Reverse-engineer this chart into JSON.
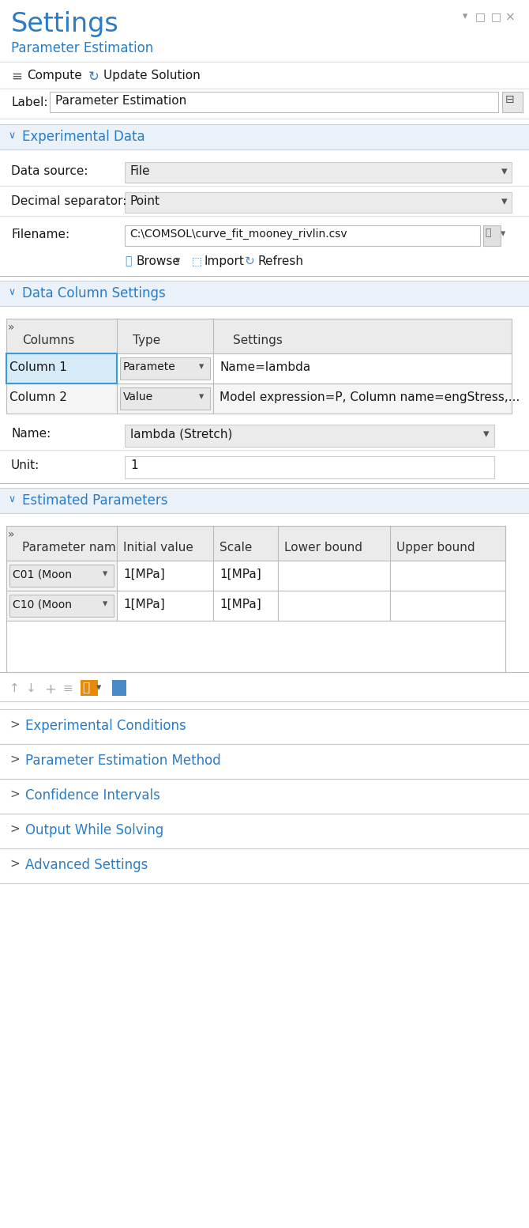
{
  "bg_color": "#f0f4f8",
  "white": "#ffffff",
  "title_color": "#2a7cc7",
  "section_color": "#2a7cc7",
  "section_bg": "#eaf1f8",
  "header_bg": "#ebebeb",
  "selected_row_bg": "#d6eaf8",
  "selected_row_border": "#3a9ad9",
  "dropdown_bg": "#ebebeb",
  "input_bg": "#f7f7f7",
  "border_color": "#c8c8c8",
  "light_border": "#d8d8d8",
  "text_dark": "#1a1a1a",
  "text_mid": "#444444",
  "text_light": "#888888",
  "collapsed_sections": [
    "Experimental Conditions",
    "Parameter Estimation Method",
    "Confidence Intervals",
    "Output While Solving",
    "Advanced Settings"
  ]
}
